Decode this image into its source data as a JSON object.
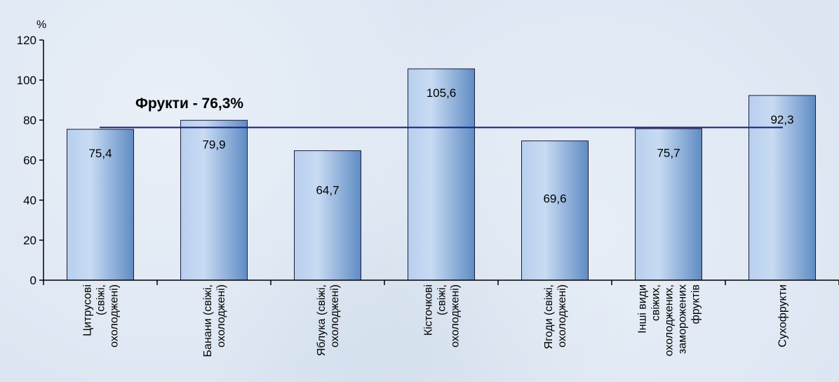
{
  "chart_data": {
    "type": "bar",
    "categories": [
      [
        "Цитрусові",
        "(свіжі,",
        "охолоджені)"
      ],
      [
        "Банани (свіжі,",
        "охолоджені)"
      ],
      [
        "Яблука (свіжі,",
        "охолоджені)"
      ],
      [
        "Кісточкові",
        "(свіжі,",
        "охолоджені)"
      ],
      [
        "Ягоди (свіжі,",
        "охолоджені)"
      ],
      [
        "Інші види",
        "свіжих,",
        "охолоджених,",
        "заморожених",
        "фруктів"
      ],
      [
        "Сухофрукти"
      ]
    ],
    "values": [
      75.4,
      79.9,
      64.7,
      105.6,
      69.6,
      75.7,
      92.3
    ],
    "value_labels": [
      "75,4",
      "79,9",
      "64,7",
      "105,6",
      "69,6",
      "75,7",
      "92,3"
    ],
    "unit_label": "%",
    "ylim": [
      0,
      120
    ],
    "yticks": [
      0,
      20,
      40,
      60,
      80,
      100,
      120
    ],
    "reference_line": {
      "value": 76.3,
      "label": "Фрукти - 76,3%",
      "color": "#1a1a7a"
    },
    "bar_color_light": "#c9dcf3",
    "bar_color_dark": "#5a86c0",
    "grid": false
  }
}
